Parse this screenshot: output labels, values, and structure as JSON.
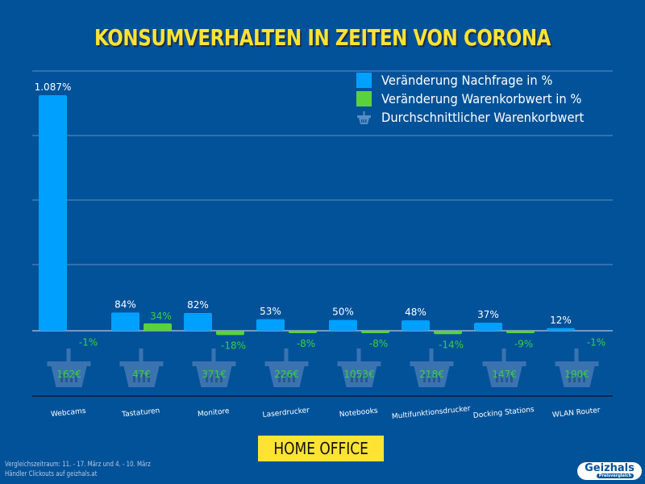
{
  "title": "KONSUMVERHALTEN IN ZEITEN VON CORONA",
  "legend": {
    "items": [
      {
        "label": "Veränderung Nachfrage in %",
        "color": "#00a0ff",
        "icon": "square"
      },
      {
        "label": "Veränderung Warenkorbwert in %",
        "color": "#5ad23c",
        "icon": "square"
      },
      {
        "label": "Durchschnittlicher Warenkorbwert",
        "color": "#5a8dc4",
        "icon": "basket-icon"
      }
    ]
  },
  "badge": "HOME OFFICE",
  "footnote": {
    "line1": "Vergleichszeitraum: 11. - 17. März und 4. - 10. März",
    "line2": "Händler Clickouts auf geizhals.at"
  },
  "logo": {
    "main": "Geizhals",
    "sub": "Preisvergleich"
  },
  "colors": {
    "background": "#02529a",
    "demand": "#00a0ff",
    "basket_change": "#5ad23c",
    "basket_icon": "#3b73b0",
    "title": "#ffe333",
    "grid": "#8fa9c8"
  },
  "chart_data": {
    "type": "bar",
    "title": "KONSUMVERHALTEN IN ZEITEN VON CORONA",
    "xlabel": "",
    "ylabel": "",
    "ylim": [
      0,
      1087
    ],
    "grid": true,
    "legend_position": "top-right",
    "categories": [
      "Webcams",
      "Tastaturen",
      "Monitore",
      "Laserdrucker",
      "Notebooks",
      "Multifunktionsdrucker",
      "Docking Stations",
      "WLAN Router"
    ],
    "series": [
      {
        "name": "Veränderung Nachfrage in %",
        "values": [
          1087,
          84,
          82,
          53,
          50,
          48,
          37,
          12
        ],
        "labels": [
          "1.087%",
          "84%",
          "82%",
          "53%",
          "50%",
          "48%",
          "37%",
          "12%"
        ]
      },
      {
        "name": "Veränderung Warenkorbwert in %",
        "values": [
          -1,
          34,
          -18,
          -8,
          -8,
          -14,
          -9,
          -1
        ],
        "labels": [
          "-1%",
          "34%",
          "-18%",
          "-8%",
          "-8%",
          "-14%",
          "-9%",
          "-1%"
        ]
      }
    ],
    "basket_values": {
      "name": "Durchschnittlicher Warenkorbwert",
      "values": [
        162,
        47,
        371,
        226,
        1053,
        218,
        147,
        190
      ],
      "labels": [
        "162€",
        "47€",
        "371€",
        "226€",
        "1053€",
        "218€",
        "147€",
        "190€"
      ]
    }
  }
}
